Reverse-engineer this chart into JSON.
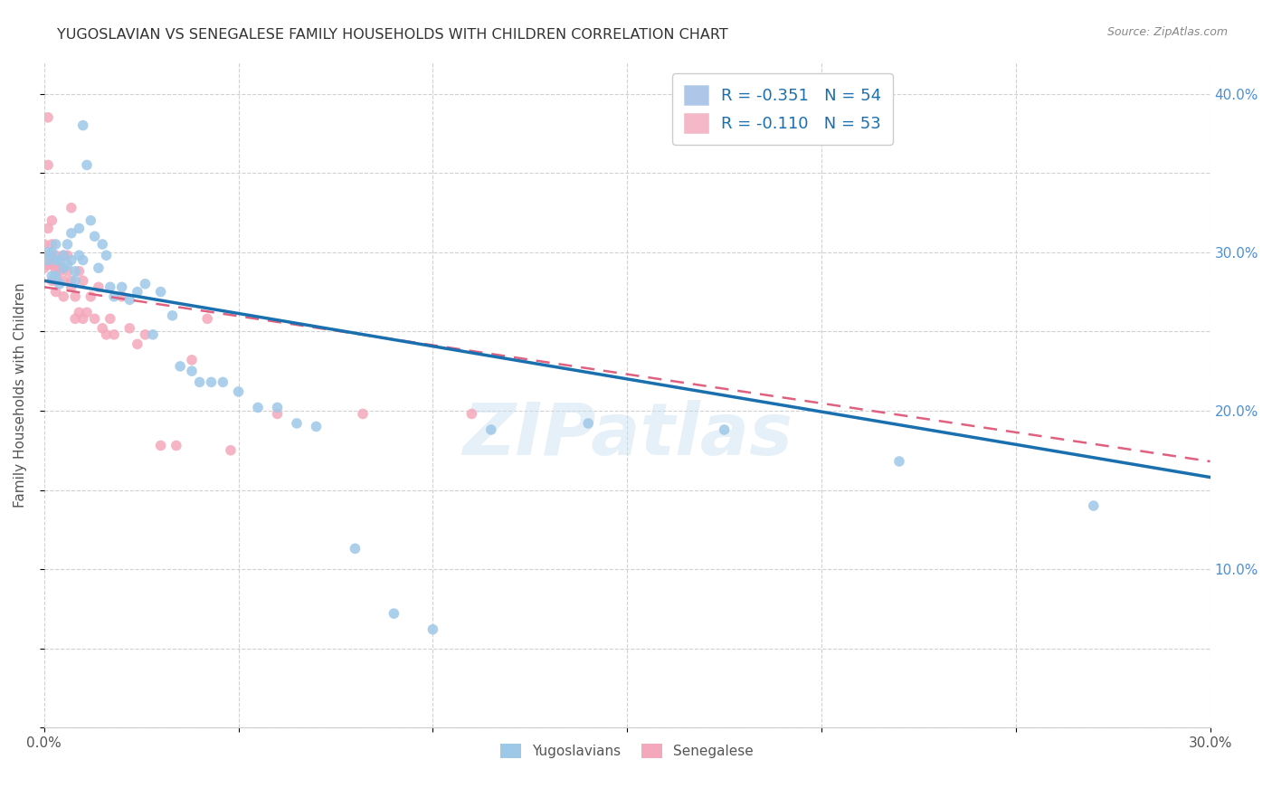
{
  "title": "YUGOSLAVIAN VS SENEGALESE FAMILY HOUSEHOLDS WITH CHILDREN CORRELATION CHART",
  "source": "Source: ZipAtlas.com",
  "ylabel": "Family Households with Children",
  "xlim": [
    0.0,
    0.3
  ],
  "ylim": [
    0.0,
    0.42
  ],
  "blue_color": "#9ec8e8",
  "pink_color": "#f4a8bb",
  "blue_line_color": "#1a6faf",
  "pink_line_color": "#e06080",
  "watermark": "ZIPatlas",
  "yug_x": [
    0.001,
    0.001,
    0.002,
    0.002,
    0.003,
    0.003,
    0.003,
    0.004,
    0.004,
    0.005,
    0.005,
    0.006,
    0.006,
    0.007,
    0.007,
    0.008,
    0.008,
    0.009,
    0.009,
    0.01,
    0.01,
    0.011,
    0.012,
    0.013,
    0.014,
    0.015,
    0.016,
    0.017,
    0.018,
    0.02,
    0.022,
    0.024,
    0.026,
    0.028,
    0.03,
    0.033,
    0.035,
    0.038,
    0.04,
    0.043,
    0.046,
    0.05,
    0.055,
    0.06,
    0.065,
    0.07,
    0.08,
    0.09,
    0.1,
    0.115,
    0.14,
    0.175,
    0.22,
    0.27
  ],
  "yug_y": [
    0.295,
    0.3,
    0.285,
    0.3,
    0.285,
    0.295,
    0.305,
    0.28,
    0.295,
    0.29,
    0.298,
    0.292,
    0.305,
    0.295,
    0.312,
    0.282,
    0.288,
    0.298,
    0.315,
    0.295,
    0.38,
    0.355,
    0.32,
    0.31,
    0.29,
    0.305,
    0.298,
    0.278,
    0.272,
    0.278,
    0.27,
    0.275,
    0.28,
    0.248,
    0.275,
    0.26,
    0.228,
    0.225,
    0.218,
    0.218,
    0.218,
    0.212,
    0.202,
    0.202,
    0.192,
    0.19,
    0.113,
    0.072,
    0.062,
    0.188,
    0.192,
    0.188,
    0.168,
    0.14
  ],
  "sen_x": [
    0.0,
    0.0,
    0.001,
    0.001,
    0.001,
    0.001,
    0.001,
    0.002,
    0.002,
    0.002,
    0.002,
    0.002,
    0.003,
    0.003,
    0.003,
    0.003,
    0.003,
    0.004,
    0.004,
    0.005,
    0.005,
    0.005,
    0.006,
    0.006,
    0.007,
    0.007,
    0.007,
    0.008,
    0.008,
    0.009,
    0.009,
    0.01,
    0.01,
    0.011,
    0.012,
    0.013,
    0.014,
    0.015,
    0.016,
    0.017,
    0.018,
    0.02,
    0.022,
    0.024,
    0.026,
    0.03,
    0.034,
    0.038,
    0.042,
    0.048,
    0.06,
    0.082,
    0.11
  ],
  "sen_y": [
    0.29,
    0.305,
    0.385,
    0.355,
    0.315,
    0.298,
    0.292,
    0.32,
    0.305,
    0.298,
    0.292,
    0.282,
    0.298,
    0.292,
    0.288,
    0.282,
    0.275,
    0.292,
    0.288,
    0.298,
    0.282,
    0.272,
    0.298,
    0.288,
    0.282,
    0.278,
    0.328,
    0.258,
    0.272,
    0.288,
    0.262,
    0.282,
    0.258,
    0.262,
    0.272,
    0.258,
    0.278,
    0.252,
    0.248,
    0.258,
    0.248,
    0.272,
    0.252,
    0.242,
    0.248,
    0.178,
    0.178,
    0.232,
    0.258,
    0.175,
    0.198,
    0.198,
    0.198
  ],
  "blue_line_x0": 0.0,
  "blue_line_y0": 0.282,
  "blue_line_x1": 0.3,
  "blue_line_y1": 0.158,
  "pink_line_x0": 0.0,
  "pink_line_y0": 0.278,
  "pink_line_x1": 0.3,
  "pink_line_y1": 0.168
}
